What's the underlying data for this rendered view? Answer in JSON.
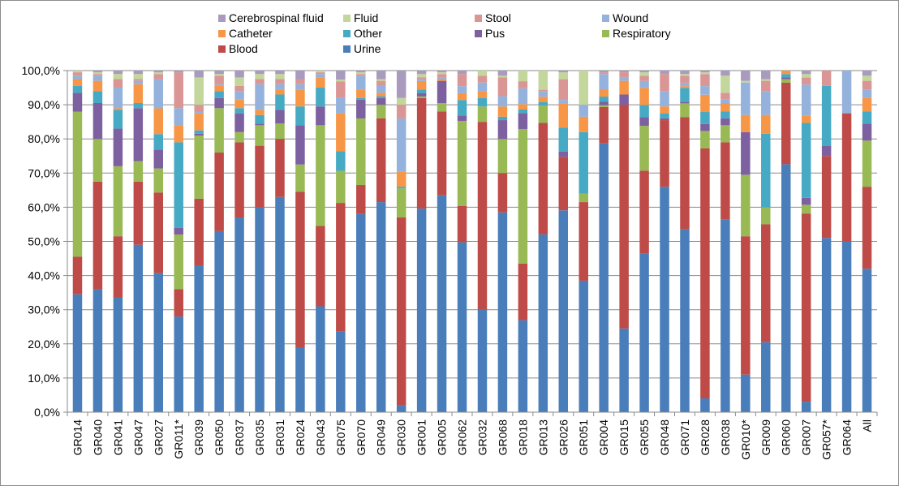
{
  "chart_data": {
    "type": "bar",
    "stacked": true,
    "percent_stacked": true,
    "title": "",
    "xlabel": "",
    "ylabel": "",
    "ylim": [
      0,
      100
    ],
    "y_ticks": [
      "0,0%",
      "10,0%",
      "20,0%",
      "30,0%",
      "40,0%",
      "50,0%",
      "60,0%",
      "70,0%",
      "80,0%",
      "90,0%",
      "100,0%"
    ],
    "grid": true,
    "legend_position": "top",
    "categories": [
      "GR014",
      "GR040",
      "GR041",
      "GR047",
      "GR027",
      "GR011*",
      "GR039",
      "GR050",
      "GR037",
      "GR035",
      "GR031",
      "GR024",
      "GR043",
      "GR075",
      "GR070",
      "GR049",
      "GR030",
      "GR001",
      "GR005",
      "GR062",
      "GR032",
      "GR068",
      "GR018",
      "GR013",
      "GR026",
      "GR051",
      "GR004",
      "GR015",
      "GR055",
      "GR048",
      "GR071",
      "GR028",
      "GR038",
      "GR010*",
      "GR009",
      "GR060",
      "GR007",
      "GR057*",
      "GR064",
      "All"
    ],
    "series": [
      {
        "name": "Urine",
        "color": "#4a7ebb",
        "values": [
          34.5,
          36.0,
          33.5,
          49.0,
          40.5,
          28.0,
          43.0,
          53.0,
          57.0,
          60.0,
          63.0,
          19.0,
          31.0,
          22.5,
          58.0,
          61.5,
          2.0,
          59.0,
          63.5,
          49.0,
          30.0,
          58.5,
          26.0,
          51.0,
          58.5,
          38.5,
          77.5,
          24.5,
          46.0,
          66.0,
          53.0,
          4.0,
          56.5,
          11.0,
          20.5,
          71.5,
          3.0,
          51.0,
          50.0,
          42.0
        ]
      },
      {
        "name": "Blood",
        "color": "#be4b48",
        "values": [
          11.0,
          31.5,
          18.0,
          18.5,
          23.5,
          8.0,
          19.5,
          23.0,
          22.0,
          18.0,
          17.0,
          45.5,
          23.5,
          36.0,
          8.5,
          24.5,
          55.0,
          32.0,
          24.5,
          10.5,
          55.0,
          11.5,
          16.0,
          32.0,
          15.5,
          23.0,
          10.5,
          65.5,
          24.0,
          19.5,
          32.5,
          72.5,
          22.5,
          40.5,
          34.5,
          23.5,
          54.0,
          24.0,
          37.5,
          24.0
        ]
      },
      {
        "name": "Respiratory",
        "color": "#98b954",
        "values": [
          42.5,
          12.5,
          20.5,
          6.0,
          7.0,
          16.0,
          18.5,
          13.0,
          3.0,
          6.0,
          4.5,
          8.0,
          29.5,
          9.0,
          19.5,
          4.0,
          8.5,
          0.5,
          2.5,
          24.5,
          4.5,
          10.0,
          38.0,
          5.0,
          0.0,
          2.5,
          0.5,
          0.0,
          13.0,
          0.0,
          4.0,
          5.0,
          5.0,
          18.0,
          5.0,
          1.0,
          2.5,
          0.0,
          0.0,
          13.5
        ]
      },
      {
        "name": "Pus",
        "color": "#7d60a0",
        "values": [
          5.5,
          10.5,
          11.0,
          15.5,
          5.5,
          2.0,
          0.5,
          3.0,
          5.5,
          0.5,
          4.0,
          11.5,
          5.5,
          0.0,
          5.5,
          2.0,
          0.0,
          1.0,
          6.5,
          1.5,
          0.0,
          5.5,
          4.5,
          0.0,
          1.5,
          0.0,
          1.0,
          3.0,
          2.5,
          0.5,
          0.5,
          2.0,
          2.0,
          12.5,
          0.0,
          0.5,
          2.0,
          3.0,
          0.0,
          5.0
        ]
      },
      {
        "name": "Other",
        "color": "#46aac5",
        "values": [
          2.0,
          3.5,
          5.5,
          1.5,
          4.5,
          25.0,
          1.0,
          2.0,
          1.5,
          2.5,
          4.5,
          5.5,
          5.5,
          5.5,
          0.5,
          0.5,
          0.5,
          1.0,
          0.0,
          4.5,
          2.5,
          1.0,
          1.0,
          1.0,
          7.0,
          18.0,
          1.5,
          0.0,
          3.5,
          1.5,
          4.0,
          3.5,
          2.0,
          0.0,
          21.5,
          1.0,
          21.5,
          17.5,
          0.0,
          3.5
        ]
      },
      {
        "name": "Catheter",
        "color": "#f79646",
        "values": [
          2.0,
          3.0,
          0.5,
          5.5,
          7.5,
          5.0,
          5.0,
          1.5,
          2.5,
          1.5,
          1.5,
          5.0,
          3.0,
          10.5,
          2.5,
          1.0,
          4.5,
          2.5,
          0.5,
          2.0,
          2.0,
          3.0,
          1.5,
          1.5,
          7.0,
          4.5,
          2.0,
          4.0,
          5.0,
          2.0,
          0.5,
          5.0,
          2.5,
          5.0,
          5.5,
          1.0,
          2.0,
          0.0,
          0.0,
          4.0
        ]
      },
      {
        "name": "Wound",
        "color": "#94b2db",
        "values": [
          1.0,
          1.5,
          6.0,
          1.0,
          8.5,
          5.0,
          0.5,
          0.5,
          2.5,
          7.5,
          1.5,
          1.5,
          1.0,
          4.5,
          4.0,
          2.0,
          15.5,
          0.5,
          0.5,
          2.0,
          2.5,
          3.0,
          4.5,
          1.5,
          1.0,
          3.5,
          4.5,
          1.0,
          2.0,
          4.5,
          1.0,
          2.5,
          1.0,
          9.5,
          7.0,
          0.0,
          9.0,
          0.0,
          12.5,
          2.5
        ]
      },
      {
        "name": "Stool",
        "color": "#da9695",
        "values": [
          1.0,
          0.5,
          2.5,
          0.5,
          1.5,
          10.5,
          2.0,
          2.5,
          1.5,
          1.5,
          1.5,
          1.5,
          0.5,
          4.5,
          0.5,
          1.5,
          4.0,
          0.5,
          1.0,
          3.5,
          2.0,
          5.5,
          2.0,
          0.5,
          6.0,
          0.0,
          0.5,
          1.5,
          1.5,
          5.0,
          2.0,
          3.5,
          2.0,
          0.0,
          3.0,
          0.0,
          2.0,
          4.5,
          0.0,
          2.5
        ]
      },
      {
        "name": "Fluid",
        "color": "#c3d69b",
        "values": [
          0.5,
          0.5,
          1.5,
          1.5,
          0.5,
          0.0,
          8.0,
          0.5,
          2.5,
          1.5,
          1.5,
          0.0,
          0.5,
          0.5,
          0.5,
          0.5,
          2.0,
          1.0,
          0.5,
          0.0,
          1.5,
          0.5,
          3.0,
          5.5,
          2.0,
          10.0,
          0.0,
          0.0,
          1.0,
          0.0,
          0.5,
          0.5,
          5.0,
          0.5,
          0.5,
          0.0,
          1.0,
          0.0,
          0.0,
          1.5
        ]
      },
      {
        "name": "Cerebrospinal fluid",
        "color": "#a99bbd",
        "values": [
          0.0,
          0.5,
          1.0,
          1.0,
          0.5,
          0.5,
          2.0,
          1.0,
          2.0,
          1.0,
          1.0,
          2.5,
          0.0,
          2.5,
          0.5,
          2.5,
          8.0,
          1.0,
          0.5,
          1.0,
          0.0,
          1.5,
          0.0,
          0.0,
          0.5,
          0.0,
          0.5,
          0.5,
          0.5,
          1.0,
          1.0,
          0.5,
          1.5,
          3.0,
          2.5,
          0.0,
          1.0,
          0.0,
          0.0,
          1.5
        ]
      }
    ],
    "legend_order": [
      "Cerebrospinal fluid",
      "Fluid",
      "Stool",
      "Wound",
      "Catheter",
      "Other",
      "Pus",
      "Respiratory",
      "Blood",
      "Urine"
    ]
  }
}
